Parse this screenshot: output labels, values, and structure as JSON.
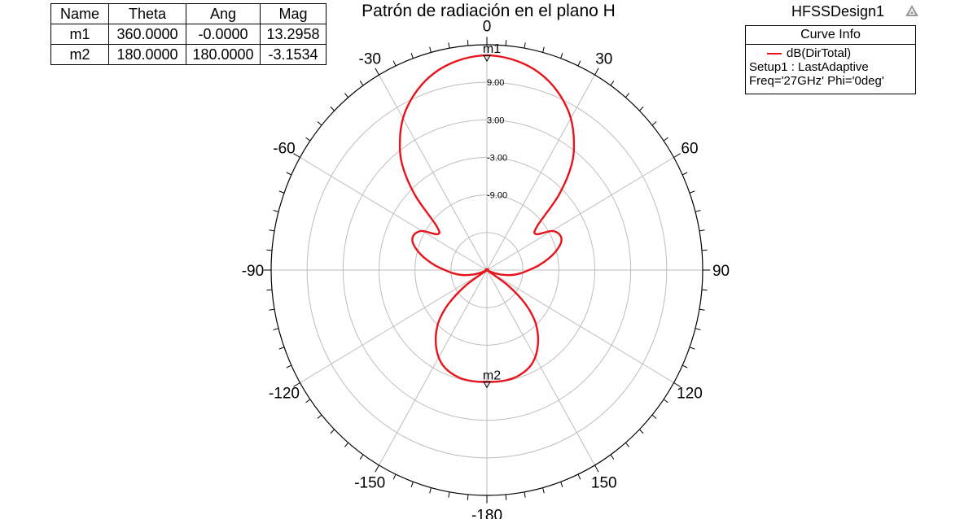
{
  "header": {
    "design_name": "HFSSDesign1"
  },
  "marker_table": {
    "columns": [
      "Name",
      "Theta",
      "Ang",
      "Mag"
    ],
    "rows": [
      [
        "m1",
        "360.0000",
        "-0.0000",
        "13.2958"
      ],
      [
        "m2",
        "180.0000",
        "180.0000",
        "-3.1534"
      ]
    ]
  },
  "legend": {
    "header": "Curve Info",
    "series_label": "dB(DirTotal)",
    "setup_line": "Setup1 : LastAdaptive",
    "freq_line": "Freq='27GHz' Phi='0deg'"
  },
  "colors": {
    "curve": "#e8141c",
    "grid": "#bdbdbd",
    "outer_ring": "#000000"
  },
  "chart_data": {
    "type": "polar-line",
    "title": "Patrón de radiación en el plano H",
    "theta_unit": "deg",
    "radial_range": [
      -21,
      15
    ],
    "angle_labels": [
      "0",
      "30",
      "60",
      "90",
      "120",
      "150",
      "-180",
      "-150",
      "-120",
      "-90",
      "-60",
      "-30"
    ],
    "radial_tick_labels": [
      "9.00",
      "3.00",
      "-3.00",
      "-9.00"
    ],
    "markers": [
      {
        "name": "m1",
        "theta": 360,
        "value": 13.2958
      },
      {
        "name": "m2",
        "theta": 180,
        "value": -3.1534
      }
    ],
    "series": [
      {
        "name": "dB(DirTotal)",
        "theta": [
          0,
          5,
          10,
          15,
          20,
          25,
          30,
          35,
          40,
          45,
          50,
          55,
          60,
          65,
          70,
          75,
          80,
          85,
          90,
          95,
          100,
          105,
          110,
          115,
          120,
          125,
          130,
          135,
          140,
          145,
          150,
          155,
          160,
          165,
          170,
          175,
          180,
          185,
          190,
          195,
          200,
          205,
          210,
          215,
          220,
          225,
          230,
          235,
          240,
          245,
          250,
          255,
          260,
          265,
          270,
          275,
          280,
          285,
          290,
          295,
          300,
          305,
          310,
          315,
          320,
          325,
          330,
          335,
          340,
          345,
          350,
          355,
          360
        ],
        "values": [
          13.3,
          13.1,
          12.6,
          11.8,
          10.6,
          9.0,
          7.0,
          4.3,
          1.0,
          -4.0,
          -10.0,
          -11.0,
          -8.5,
          -7.6,
          -7.8,
          -9.0,
          -10.6,
          -12.3,
          -14.0,
          -15.3,
          -16.6,
          -18.0,
          -19.3,
          -20.5,
          -21.0,
          -16.6,
          -12.7,
          -9.8,
          -7.8,
          -6.2,
          -4.9,
          -4.0,
          -3.5,
          -3.2,
          -3.1,
          -3.1,
          -3.15,
          -3.1,
          -3.1,
          -3.2,
          -3.5,
          -4.0,
          -4.9,
          -6.2,
          -7.8,
          -9.8,
          -12.7,
          -16.6,
          -21.0,
          -20.5,
          -19.3,
          -18.0,
          -16.6,
          -15.3,
          -14.0,
          -12.3,
          -10.6,
          -9.0,
          -7.8,
          -7.6,
          -8.5,
          -11.0,
          -10.0,
          -4.0,
          1.0,
          4.3,
          7.0,
          9.0,
          10.6,
          11.8,
          12.6,
          13.1,
          13.3
        ]
      }
    ]
  }
}
